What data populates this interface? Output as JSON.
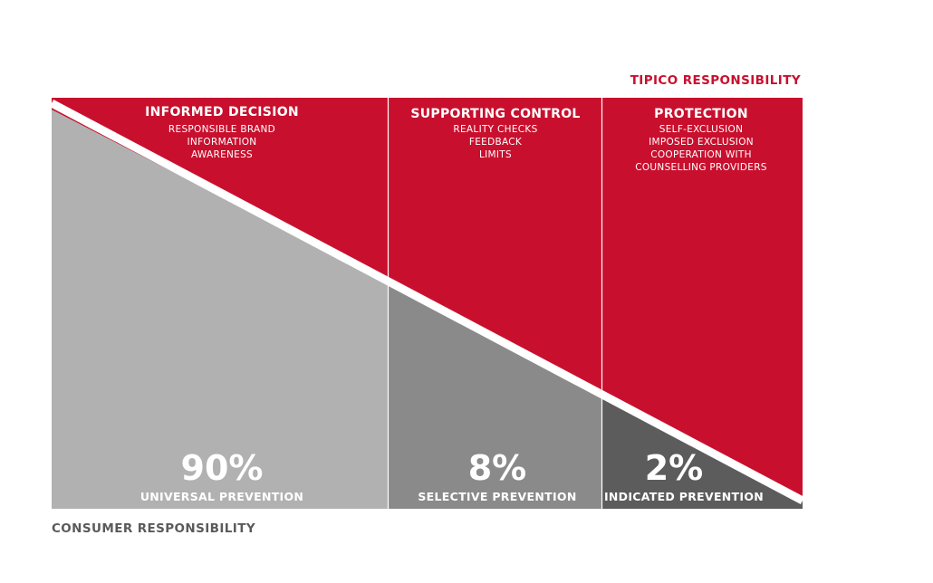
{
  "top_label": "TIPICO RESPONSIBILITY",
  "bottom_label": "CONSUMER RESPONSIBILITY",
  "colors": {
    "red": "#c8102e",
    "gray_light": "#b1b1b1",
    "gray_mid": "#8a8a8a",
    "gray_dark": "#5c5c5c",
    "top_label": "#c8102e",
    "bottom_label": "#5a5a5a"
  },
  "columns": [
    {
      "heading": "INFORMED DECISION",
      "items": [
        "RESPONSIBLE BRAND",
        "INFORMATION",
        "AWARENESS"
      ],
      "percent": "90%",
      "prevention": "UNIVERSAL PREVENTION"
    },
    {
      "heading": "SUPPORTING CONTROL",
      "items": [
        "REALITY CHECKS",
        "FEEDBACK",
        "LIMITS"
      ],
      "percent": "8%",
      "prevention": "SELECTIVE PREVENTION"
    },
    {
      "heading": "PROTECTION",
      "items": [
        "SELF-EXCLUSION",
        "IMPOSED EXCLUSION",
        "COOPERATION WITH",
        "COUNSELLING PROVIDERS"
      ],
      "percent": "2%",
      "prevention": "INDICATED PREVENTION"
    }
  ]
}
